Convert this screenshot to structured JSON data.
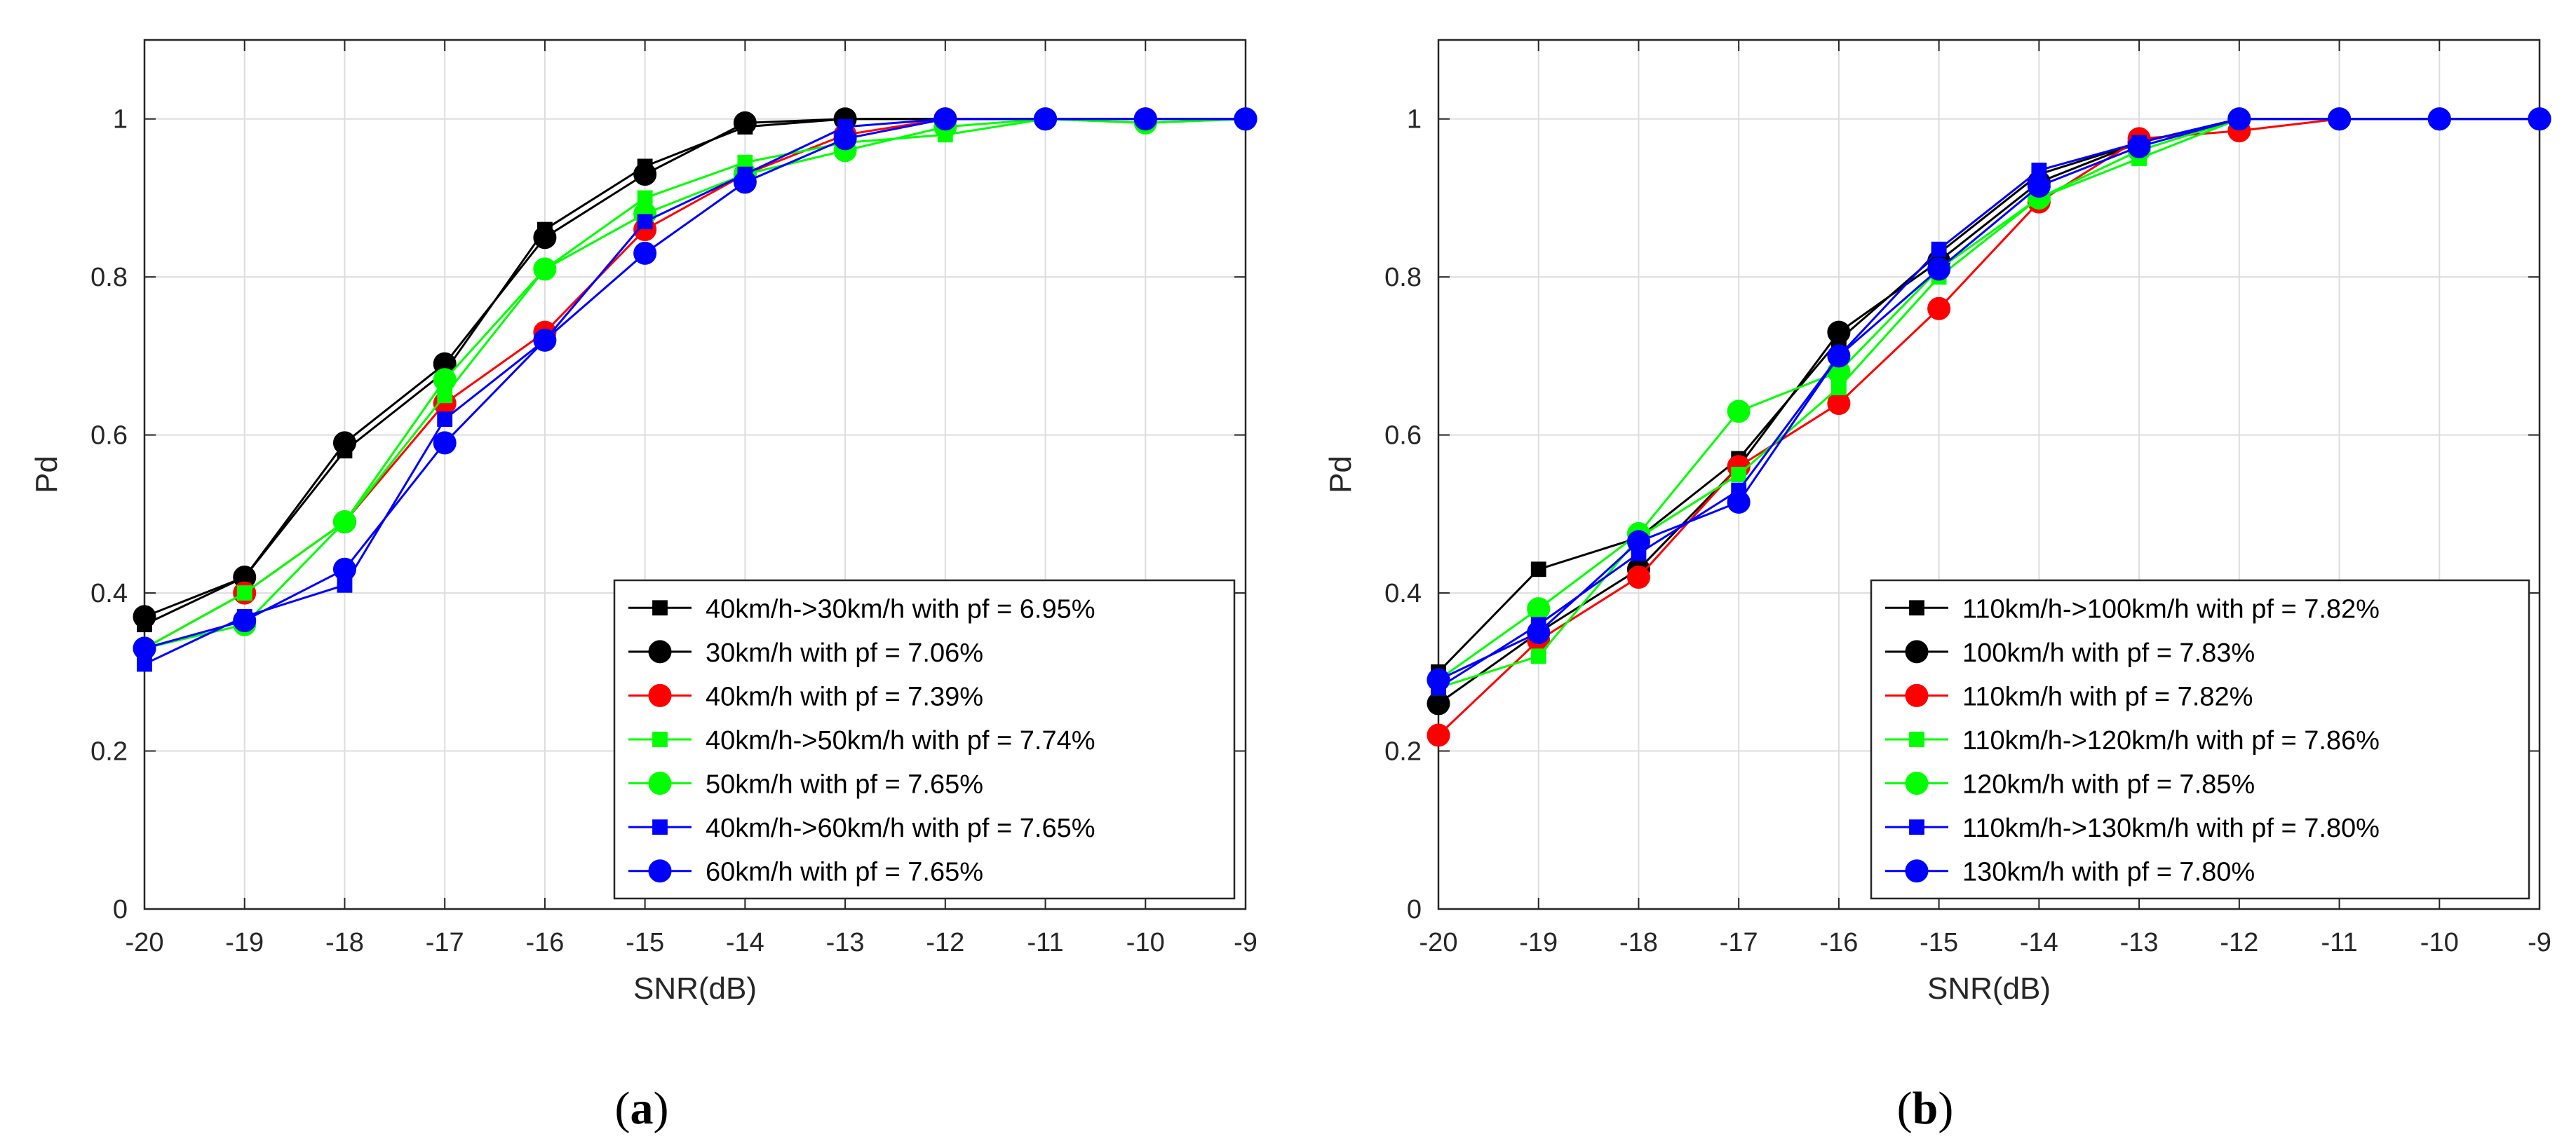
{
  "figure": {
    "panels": [
      {
        "caption_open": "(",
        "caption_letter": "a",
        "caption_close": ")"
      },
      {
        "caption_open": "(",
        "caption_letter": "b",
        "caption_close": ")"
      }
    ]
  },
  "chart_data": [
    {
      "type": "line",
      "title": "",
      "xlabel": "SNR(dB)",
      "ylabel": "Pd",
      "xlim": [
        -20,
        -9
      ],
      "ylim": [
        0,
        1.1
      ],
      "xticks": [
        -20,
        -19,
        -18,
        -17,
        -16,
        -15,
        -14,
        -13,
        -12,
        -11,
        -10,
        -9
      ],
      "yticks": [
        0,
        0.2,
        0.4,
        0.6,
        0.8,
        1
      ],
      "ytick_labels": [
        "0",
        "0.2",
        "0.4",
        "0.6",
        "0.8",
        "1"
      ],
      "grid": true,
      "legend_position": "bottom-right",
      "x": [
        -20,
        -19,
        -18,
        -17,
        -16,
        -15,
        -14,
        -13,
        -12,
        -11,
        -10,
        -9
      ],
      "series": [
        {
          "name": "40km/h->30km/h with pf = 6.95%",
          "color": "#000000",
          "marker": "square",
          "values": [
            0.36,
            0.42,
            0.58,
            0.68,
            0.86,
            0.94,
            0.99,
            1.0,
            1.0,
            1.0,
            1.0,
            1.0
          ]
        },
        {
          "name": "30km/h with pf = 7.06%",
          "color": "#000000",
          "marker": "circle",
          "values": [
            0.37,
            0.42,
            0.59,
            0.69,
            0.85,
            0.93,
            0.995,
            1.0,
            1.0,
            1.0,
            1.0,
            1.0
          ]
        },
        {
          "name": "40km/h with pf = 7.39%",
          "color": "#ff0000",
          "marker": "circle",
          "values": [
            0.33,
            0.4,
            0.49,
            0.64,
            0.73,
            0.86,
            0.93,
            0.98,
            1.0,
            1.0,
            1.0,
            1.0
          ]
        },
        {
          "name": "40km/h->50km/h with pf = 7.74%",
          "color": "#00ff00",
          "marker": "square",
          "values": [
            0.33,
            0.4,
            0.49,
            0.65,
            0.81,
            0.9,
            0.945,
            0.97,
            0.98,
            1.0,
            0.995,
            1.0
          ]
        },
        {
          "name": "50km/h with pf = 7.65%",
          "color": "#00ff00",
          "marker": "circle",
          "values": [
            0.33,
            0.36,
            0.49,
            0.67,
            0.81,
            0.88,
            0.93,
            0.96,
            0.99,
            1.0,
            0.995,
            1.0
          ]
        },
        {
          "name": "40km/h->60km/h with pf = 7.65%",
          "color": "#0000ff",
          "marker": "square",
          "values": [
            0.31,
            0.37,
            0.41,
            0.62,
            0.72,
            0.87,
            0.93,
            0.99,
            1.0,
            1.0,
            1.0,
            1.0
          ]
        },
        {
          "name": "60km/h with pf = 7.65%",
          "color": "#0000ff",
          "marker": "circle",
          "values": [
            0.33,
            0.365,
            0.43,
            0.59,
            0.72,
            0.83,
            0.92,
            0.975,
            1.0,
            1.0,
            1.0,
            1.0
          ]
        }
      ]
    },
    {
      "type": "line",
      "title": "",
      "xlabel": "SNR(dB)",
      "ylabel": "Pd",
      "xlim": [
        -20,
        -9
      ],
      "ylim": [
        0,
        1.1
      ],
      "xticks": [
        -20,
        -19,
        -18,
        -17,
        -16,
        -15,
        -14,
        -13,
        -12,
        -11,
        -10,
        -9
      ],
      "yticks": [
        0,
        0.2,
        0.4,
        0.6,
        0.8,
        1
      ],
      "ytick_labels": [
        "0",
        "0.2",
        "0.4",
        "0.6",
        "0.8",
        "1"
      ],
      "grid": true,
      "legend_position": "bottom-right",
      "x": [
        -20,
        -19,
        -18,
        -17,
        -16,
        -15,
        -14,
        -13,
        -12,
        -11,
        -10,
        -9
      ],
      "series": [
        {
          "name": "110km/h->100km/h with pf = 7.82%",
          "color": "#000000",
          "marker": "square",
          "values": [
            0.3,
            0.43,
            0.47,
            0.57,
            0.72,
            0.83,
            0.93,
            0.97,
            1.0,
            1.0,
            1.0,
            1.0
          ]
        },
        {
          "name": "100km/h with pf = 7.83%",
          "color": "#000000",
          "marker": "circle",
          "values": [
            0.26,
            0.35,
            0.43,
            0.56,
            0.73,
            0.82,
            0.92,
            0.97,
            1.0,
            1.0,
            1.0,
            1.0
          ]
        },
        {
          "name": "110km/h with pf = 7.82%",
          "color": "#ff0000",
          "marker": "circle",
          "values": [
            0.22,
            0.34,
            0.42,
            0.56,
            0.64,
            0.76,
            0.895,
            0.975,
            0.985,
            1.0,
            1.0,
            1.0
          ]
        },
        {
          "name": "110km/h->120km/h with pf = 7.86%",
          "color": "#00ff00",
          "marker": "square",
          "values": [
            0.28,
            0.32,
            0.47,
            0.55,
            0.66,
            0.8,
            0.9,
            0.95,
            1.0,
            1.0,
            1.0,
            1.0
          ]
        },
        {
          "name": "120km/h with pf = 7.85%",
          "color": "#00ff00",
          "marker": "circle",
          "values": [
            0.29,
            0.38,
            0.475,
            0.63,
            0.68,
            0.81,
            0.9,
            0.96,
            1.0,
            1.0,
            1.0,
            1.0
          ]
        },
        {
          "name": "110km/h->130km/h with pf = 7.80%",
          "color": "#0000ff",
          "marker": "square",
          "values": [
            0.28,
            0.36,
            0.45,
            0.53,
            0.7,
            0.835,
            0.935,
            0.97,
            1.0,
            1.0,
            1.0,
            1.0
          ]
        },
        {
          "name": "130km/h with pf = 7.80%",
          "color": "#0000ff",
          "marker": "circle",
          "values": [
            0.29,
            0.35,
            0.465,
            0.515,
            0.7,
            0.81,
            0.915,
            0.965,
            1.0,
            1.0,
            1.0,
            1.0
          ]
        }
      ]
    }
  ]
}
